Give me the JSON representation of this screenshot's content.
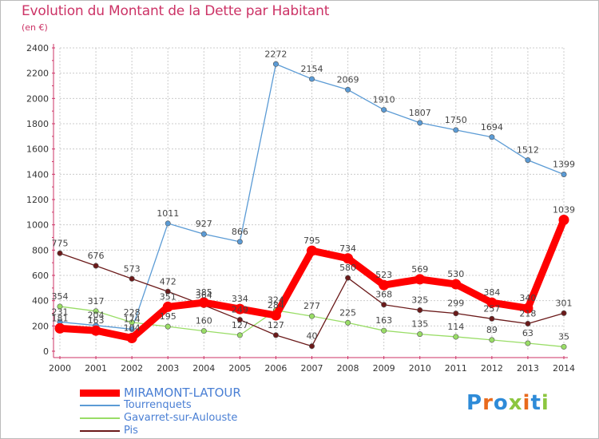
{
  "title": "Evolution du Montant de la Dette par Habitant",
  "subtitle": "(en €)",
  "logo": {
    "text": "Proxiti",
    "letters": [
      "P",
      "r",
      "o",
      "x",
      "i",
      "t",
      "i"
    ],
    "colors": [
      "#2e8bd8",
      "#e96a1c",
      "#2e8bd8",
      "#8cc63f",
      "#e96a1c",
      "#2e8bd8",
      "#8cc63f"
    ]
  },
  "chart_data": {
    "type": "line",
    "x": [
      "2000",
      "2001",
      "2002",
      "2003",
      "2004",
      "2005",
      "2006",
      "2007",
      "2008",
      "2009",
      "2010",
      "2011",
      "2012",
      "2013",
      "2014"
    ],
    "ylim": [
      0,
      2400
    ],
    "yticks": [
      "0",
      "200",
      "400",
      "600",
      "800",
      "1000",
      "1200",
      "1400",
      "1600",
      "1800",
      "2000",
      "2200",
      "2400"
    ],
    "grid": true,
    "legend_position": "bottom-left",
    "series": [
      {
        "name": "Tourrenquets",
        "color": "#5b9bd5",
        "values": [
          231,
          204,
          174,
          1011,
          927,
          866,
          2272,
          2154,
          2069,
          1910,
          1807,
          1750,
          1694,
          1512,
          1399
        ],
        "labels": [
          "231",
          "204",
          "174",
          "1011",
          "927",
          "866",
          "2272",
          "2154",
          "2069",
          "1910",
          "1807",
          "1750",
          "1694",
          "1512",
          "1399"
        ]
      },
      {
        "name": "Gavarret-sur-Aulouste",
        "color": "#99dd66",
        "values": [
          354,
          317,
          228,
          195,
          160,
          127,
          324,
          277,
          225,
          163,
          135,
          114,
          89,
          63,
          35
        ],
        "labels": [
          "354",
          "317",
          "228",
          "195",
          "160",
          "127",
          "324",
          "277",
          "225",
          "163",
          "135",
          "114",
          "89",
          "63",
          "35"
        ]
      },
      {
        "name": "Pis",
        "color": "#6b1a1a",
        "values": [
          775,
          676,
          573,
          472,
          364,
          249,
          127,
          40,
          580,
          368,
          325,
          299,
          257,
          218,
          301
        ],
        "labels": [
          "775",
          "676",
          "573",
          "472",
          "364",
          "249",
          "127",
          "40",
          "580",
          "368",
          "325",
          "299",
          "257",
          "218",
          "301"
        ]
      },
      {
        "name": "MIRAMONT-LATOUR",
        "color": "#ff0000",
        "values": [
          181,
          163,
          104,
          351,
          385,
          334,
          284,
          795,
          734,
          523,
          569,
          530,
          384,
          340,
          1039
        ],
        "labels": [
          "181",
          "163",
          "104",
          "351",
          "385",
          "334",
          "284",
          "795",
          "734",
          "523",
          "569",
          "530",
          "384",
          "340",
          "1039"
        ]
      }
    ],
    "legend": [
      {
        "name": "MIRAMONT-LATOUR",
        "color": "#ff0000"
      },
      {
        "name": "Tourrenquets",
        "color": "#5b9bd5"
      },
      {
        "name": "Gavarret-sur-Aulouste",
        "color": "#99dd66"
      },
      {
        "name": "Pis",
        "color": "#6b1a1a"
      }
    ]
  }
}
